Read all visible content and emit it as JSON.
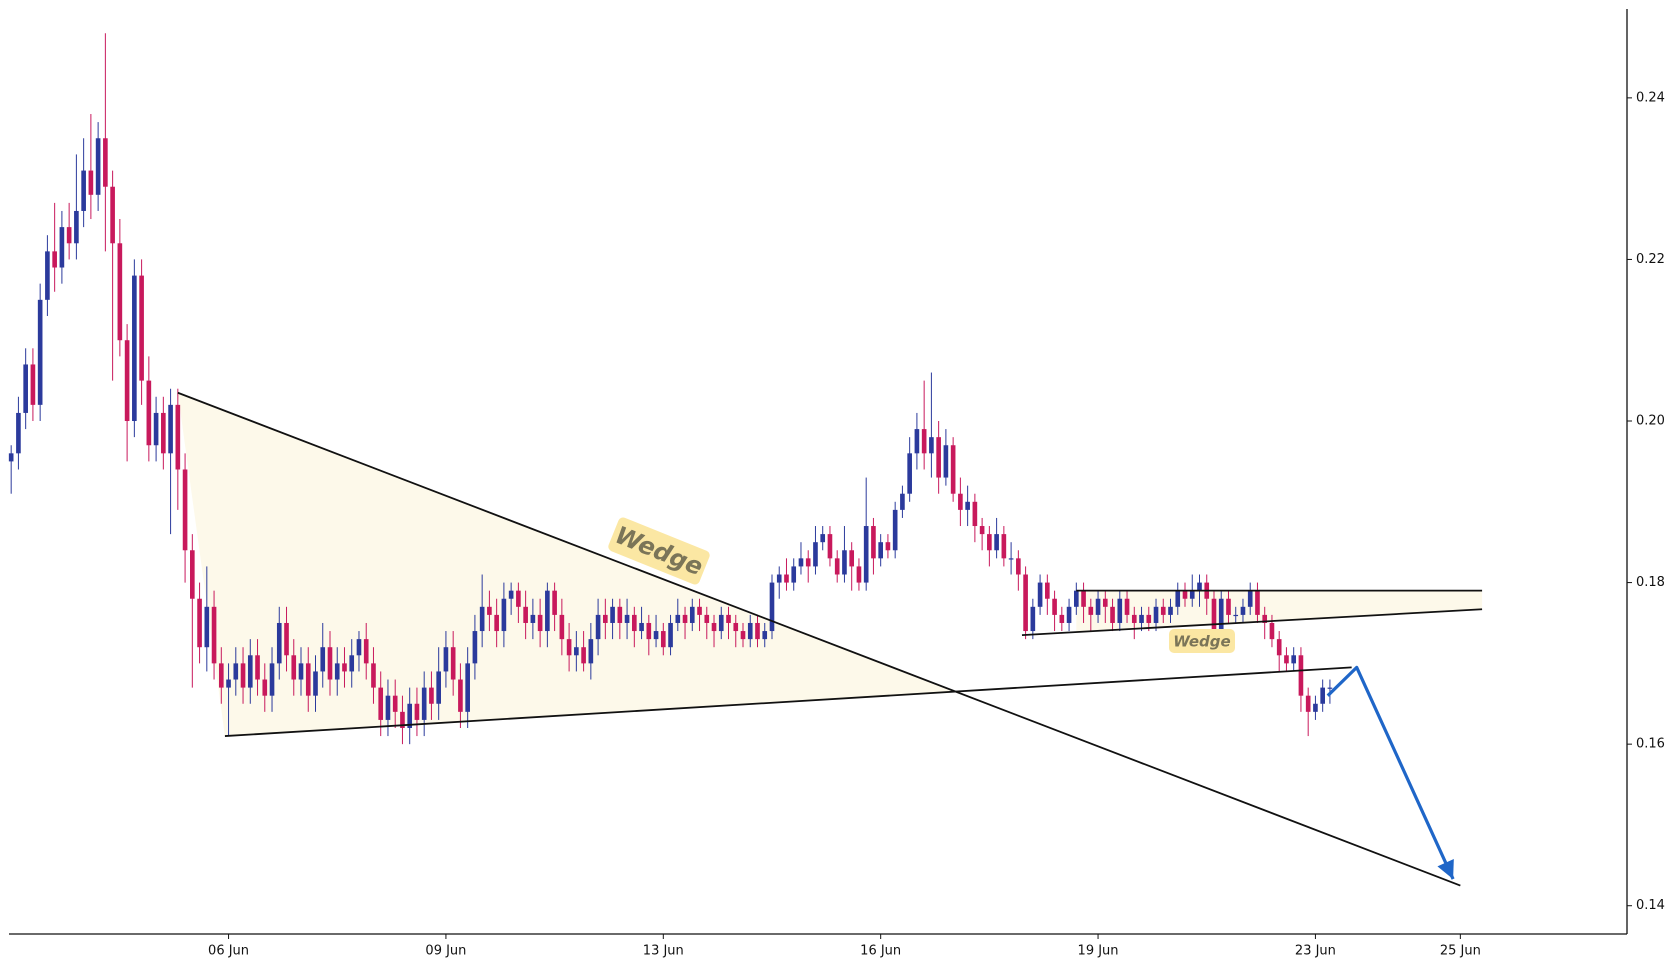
{
  "chart_data": {
    "type": "candlestick",
    "up_color": "#2b3a9c",
    "down_color": "#c8195c",
    "candles": [
      [
        0.195,
        0.197,
        0.191,
        0.196
      ],
      [
        0.196,
        0.203,
        0.194,
        0.201
      ],
      [
        0.201,
        0.209,
        0.199,
        0.207
      ],
      [
        0.207,
        0.209,
        0.2,
        0.202
      ],
      [
        0.202,
        0.217,
        0.2,
        0.215
      ],
      [
        0.215,
        0.223,
        0.213,
        0.221
      ],
      [
        0.221,
        0.227,
        0.216,
        0.219
      ],
      [
        0.219,
        0.226,
        0.217,
        0.224
      ],
      [
        0.224,
        0.227,
        0.22,
        0.222
      ],
      [
        0.222,
        0.233,
        0.22,
        0.226
      ],
      [
        0.226,
        0.235,
        0.224,
        0.231
      ],
      [
        0.231,
        0.238,
        0.225,
        0.228
      ],
      [
        0.228,
        0.237,
        0.226,
        0.235
      ],
      [
        0.235,
        0.248,
        0.221,
        0.229
      ],
      [
        0.229,
        0.231,
        0.205,
        0.222
      ],
      [
        0.222,
        0.225,
        0.208,
        0.21
      ],
      [
        0.21,
        0.212,
        0.195,
        0.2
      ],
      [
        0.2,
        0.22,
        0.198,
        0.218
      ],
      [
        0.218,
        0.22,
        0.202,
        0.205
      ],
      [
        0.205,
        0.208,
        0.195,
        0.197
      ],
      [
        0.197,
        0.203,
        0.195,
        0.201
      ],
      [
        0.201,
        0.203,
        0.194,
        0.196
      ],
      [
        0.196,
        0.204,
        0.186,
        0.202
      ],
      [
        0.202,
        0.204,
        0.189,
        0.194
      ],
      [
        0.194,
        0.196,
        0.18,
        0.184
      ],
      [
        0.184,
        0.186,
        0.167,
        0.178
      ],
      [
        0.178,
        0.18,
        0.17,
        0.172
      ],
      [
        0.172,
        0.182,
        0.169,
        0.177
      ],
      [
        0.177,
        0.179,
        0.168,
        0.17
      ],
      [
        0.17,
        0.172,
        0.165,
        0.167
      ],
      [
        0.167,
        0.17,
        0.161,
        0.168
      ],
      [
        0.168,
        0.172,
        0.166,
        0.17
      ],
      [
        0.17,
        0.172,
        0.165,
        0.167
      ],
      [
        0.167,
        0.173,
        0.165,
        0.171
      ],
      [
        0.171,
        0.173,
        0.166,
        0.168
      ],
      [
        0.168,
        0.17,
        0.164,
        0.166
      ],
      [
        0.166,
        0.172,
        0.164,
        0.17
      ],
      [
        0.17,
        0.177,
        0.168,
        0.175
      ],
      [
        0.175,
        0.177,
        0.169,
        0.171
      ],
      [
        0.171,
        0.173,
        0.166,
        0.168
      ],
      [
        0.168,
        0.172,
        0.166,
        0.17
      ],
      [
        0.17,
        0.172,
        0.164,
        0.166
      ],
      [
        0.166,
        0.171,
        0.164,
        0.169
      ],
      [
        0.169,
        0.175,
        0.167,
        0.172
      ],
      [
        0.172,
        0.174,
        0.166,
        0.168
      ],
      [
        0.168,
        0.172,
        0.166,
        0.17
      ],
      [
        0.17,
        0.172,
        0.167,
        0.169
      ],
      [
        0.169,
        0.173,
        0.167,
        0.171
      ],
      [
        0.171,
        0.174,
        0.169,
        0.173
      ],
      [
        0.173,
        0.175,
        0.168,
        0.17
      ],
      [
        0.17,
        0.172,
        0.165,
        0.167
      ],
      [
        0.167,
        0.169,
        0.161,
        0.163
      ],
      [
        0.163,
        0.168,
        0.161,
        0.166
      ],
      [
        0.166,
        0.168,
        0.162,
        0.164
      ],
      [
        0.164,
        0.166,
        0.16,
        0.162
      ],
      [
        0.162,
        0.167,
        0.16,
        0.165
      ],
      [
        0.165,
        0.167,
        0.161,
        0.163
      ],
      [
        0.163,
        0.169,
        0.161,
        0.167
      ],
      [
        0.167,
        0.169,
        0.163,
        0.165
      ],
      [
        0.165,
        0.172,
        0.163,
        0.169
      ],
      [
        0.169,
        0.174,
        0.167,
        0.172
      ],
      [
        0.172,
        0.174,
        0.166,
        0.168
      ],
      [
        0.168,
        0.17,
        0.162,
        0.164
      ],
      [
        0.164,
        0.172,
        0.162,
        0.17
      ],
      [
        0.17,
        0.176,
        0.168,
        0.174
      ],
      [
        0.174,
        0.181,
        0.172,
        0.177
      ],
      [
        0.177,
        0.179,
        0.174,
        0.176
      ],
      [
        0.176,
        0.178,
        0.172,
        0.174
      ],
      [
        0.174,
        0.18,
        0.172,
        0.178
      ],
      [
        0.178,
        0.18,
        0.176,
        0.179
      ],
      [
        0.179,
        0.18,
        0.175,
        0.177
      ],
      [
        0.177,
        0.179,
        0.173,
        0.175
      ],
      [
        0.175,
        0.178,
        0.173,
        0.176
      ],
      [
        0.176,
        0.178,
        0.172,
        0.174
      ],
      [
        0.174,
        0.18,
        0.172,
        0.179
      ],
      [
        0.179,
        0.18,
        0.174,
        0.176
      ],
      [
        0.176,
        0.178,
        0.171,
        0.173
      ],
      [
        0.173,
        0.175,
        0.169,
        0.171
      ],
      [
        0.171,
        0.174,
        0.169,
        0.172
      ],
      [
        0.172,
        0.174,
        0.169,
        0.17
      ],
      [
        0.17,
        0.175,
        0.168,
        0.173
      ],
      [
        0.173,
        0.178,
        0.171,
        0.176
      ],
      [
        0.176,
        0.178,
        0.173,
        0.175
      ],
      [
        0.175,
        0.178,
        0.173,
        0.177
      ],
      [
        0.177,
        0.178,
        0.173,
        0.175
      ],
      [
        0.175,
        0.178,
        0.173,
        0.176
      ],
      [
        0.176,
        0.177,
        0.172,
        0.174
      ],
      [
        0.174,
        0.177,
        0.173,
        0.175
      ],
      [
        0.175,
        0.176,
        0.171,
        0.173
      ],
      [
        0.173,
        0.176,
        0.172,
        0.174
      ],
      [
        0.174,
        0.175,
        0.171,
        0.172
      ],
      [
        0.172,
        0.176,
        0.171,
        0.175
      ],
      [
        0.175,
        0.178,
        0.174,
        0.176
      ],
      [
        0.176,
        0.177,
        0.173,
        0.175
      ],
      [
        0.175,
        0.178,
        0.174,
        0.177
      ],
      [
        0.177,
        0.178,
        0.174,
        0.176
      ],
      [
        0.176,
        0.177,
        0.173,
        0.175
      ],
      [
        0.175,
        0.176,
        0.172,
        0.174
      ],
      [
        0.174,
        0.177,
        0.173,
        0.176
      ],
      [
        0.176,
        0.177,
        0.173,
        0.175
      ],
      [
        0.175,
        0.176,
        0.172,
        0.174
      ],
      [
        0.174,
        0.175,
        0.172,
        0.173
      ],
      [
        0.173,
        0.176,
        0.172,
        0.175
      ],
      [
        0.175,
        0.176,
        0.172,
        0.173
      ],
      [
        0.173,
        0.175,
        0.172,
        0.174
      ],
      [
        0.174,
        0.181,
        0.173,
        0.18
      ],
      [
        0.18,
        0.182,
        0.178,
        0.181
      ],
      [
        0.181,
        0.183,
        0.179,
        0.18
      ],
      [
        0.18,
        0.183,
        0.179,
        0.182
      ],
      [
        0.182,
        0.185,
        0.181,
        0.183
      ],
      [
        0.183,
        0.184,
        0.18,
        0.182
      ],
      [
        0.182,
        0.187,
        0.181,
        0.185
      ],
      [
        0.185,
        0.187,
        0.184,
        0.186
      ],
      [
        0.186,
        0.187,
        0.182,
        0.183
      ],
      [
        0.183,
        0.184,
        0.18,
        0.181
      ],
      [
        0.181,
        0.187,
        0.18,
        0.184
      ],
      [
        0.184,
        0.185,
        0.179,
        0.182
      ],
      [
        0.182,
        0.183,
        0.179,
        0.18
      ],
      [
        0.18,
        0.193,
        0.179,
        0.187
      ],
      [
        0.187,
        0.188,
        0.181,
        0.183
      ],
      [
        0.183,
        0.186,
        0.182,
        0.185
      ],
      [
        0.185,
        0.186,
        0.183,
        0.184
      ],
      [
        0.184,
        0.19,
        0.183,
        0.189
      ],
      [
        0.189,
        0.192,
        0.188,
        0.191
      ],
      [
        0.191,
        0.198,
        0.19,
        0.196
      ],
      [
        0.196,
        0.201,
        0.194,
        0.199
      ],
      [
        0.199,
        0.205,
        0.194,
        0.196
      ],
      [
        0.196,
        0.206,
        0.193,
        0.198
      ],
      [
        0.198,
        0.2,
        0.191,
        0.193
      ],
      [
        0.193,
        0.199,
        0.192,
        0.197
      ],
      [
        0.197,
        0.198,
        0.19,
        0.191
      ],
      [
        0.191,
        0.193,
        0.187,
        0.189
      ],
      [
        0.189,
        0.192,
        0.187,
        0.19
      ],
      [
        0.19,
        0.191,
        0.185,
        0.187
      ],
      [
        0.187,
        0.188,
        0.184,
        0.186
      ],
      [
        0.186,
        0.187,
        0.182,
        0.184
      ],
      [
        0.184,
        0.188,
        0.183,
        0.186
      ],
      [
        0.186,
        0.187,
        0.182,
        0.183
      ],
      [
        0.183,
        0.185,
        0.181,
        0.183
      ],
      [
        0.183,
        0.184,
        0.179,
        0.181
      ],
      [
        0.181,
        0.182,
        0.173,
        0.174
      ],
      [
        0.174,
        0.178,
        0.173,
        0.177
      ],
      [
        0.177,
        0.181,
        0.176,
        0.18
      ],
      [
        0.18,
        0.181,
        0.176,
        0.178
      ],
      [
        0.178,
        0.179,
        0.174,
        0.176
      ],
      [
        0.176,
        0.177,
        0.174,
        0.175
      ],
      [
        0.175,
        0.178,
        0.174,
        0.177
      ],
      [
        0.177,
        0.18,
        0.176,
        0.179
      ],
      [
        0.179,
        0.18,
        0.175,
        0.177
      ],
      [
        0.177,
        0.178,
        0.174,
        0.176
      ],
      [
        0.176,
        0.179,
        0.175,
        0.178
      ],
      [
        0.178,
        0.179,
        0.175,
        0.177
      ],
      [
        0.177,
        0.178,
        0.174,
        0.175
      ],
      [
        0.175,
        0.179,
        0.174,
        0.178
      ],
      [
        0.178,
        0.179,
        0.175,
        0.176
      ],
      [
        0.176,
        0.177,
        0.173,
        0.175
      ],
      [
        0.175,
        0.177,
        0.174,
        0.176
      ],
      [
        0.176,
        0.177,
        0.174,
        0.175
      ],
      [
        0.175,
        0.178,
        0.174,
        0.177
      ],
      [
        0.177,
        0.178,
        0.175,
        0.176
      ],
      [
        0.176,
        0.178,
        0.175,
        0.177
      ],
      [
        0.177,
        0.18,
        0.176,
        0.179
      ],
      [
        0.179,
        0.18,
        0.177,
        0.178
      ],
      [
        0.178,
        0.181,
        0.177,
        0.179
      ],
      [
        0.179,
        0.181,
        0.177,
        0.18
      ],
      [
        0.18,
        0.181,
        0.176,
        0.178
      ],
      [
        0.178,
        0.179,
        0.173,
        0.174
      ],
      [
        0.174,
        0.179,
        0.173,
        0.178
      ],
      [
        0.178,
        0.179,
        0.175,
        0.176
      ],
      [
        0.176,
        0.177,
        0.175,
        0.176
      ],
      [
        0.176,
        0.178,
        0.175,
        0.177
      ],
      [
        0.177,
        0.18,
        0.176,
        0.179
      ],
      [
        0.179,
        0.18,
        0.175,
        0.176
      ],
      [
        0.176,
        0.177,
        0.173,
        0.175
      ],
      [
        0.175,
        0.176,
        0.172,
        0.173
      ],
      [
        0.173,
        0.174,
        0.169,
        0.171
      ],
      [
        0.171,
        0.172,
        0.169,
        0.17
      ],
      [
        0.17,
        0.172,
        0.169,
        0.171
      ],
      [
        0.171,
        0.172,
        0.164,
        0.166
      ],
      [
        0.166,
        0.167,
        0.161,
        0.164
      ],
      [
        0.164,
        0.166,
        0.163,
        0.165
      ],
      [
        0.165,
        0.168,
        0.164,
        0.167
      ],
      [
        0.167,
        0.168,
        0.165,
        0.167
      ]
    ],
    "xlim": [
      -0.3,
      223
    ],
    "ylim": [
      0.1365,
      0.251
    ],
    "xticks": [
      {
        "value": 30,
        "label": "06 Jun"
      },
      {
        "value": 60,
        "label": "09 Jun"
      },
      {
        "value": 90,
        "label": "13 Jun"
      },
      {
        "value": 120,
        "label": "16 Jun"
      },
      {
        "value": 150,
        "label": "19 Jun"
      },
      {
        "value": 180,
        "label": "23 Jun"
      },
      {
        "value": 200,
        "label": "25 Jun"
      }
    ],
    "yticks": [
      0.14,
      0.16,
      0.18,
      {
        "value": 0.2,
        "label": "0.20"
      },
      0.22,
      0.24
    ],
    "fills": [
      {
        "color": "#fdf9ea",
        "points": [
          [
            23,
            0.2035
          ],
          [
            29.5,
            0.161
          ],
          [
            130,
            0.1665
          ]
        ]
      },
      {
        "color": "#fdf9ea",
        "points": [
          [
            147,
            0.179
          ],
          [
            203,
            0.179
          ],
          [
            203,
            0.1767
          ],
          [
            139.5,
            0.1735
          ],
          [
            147,
            0.1739
          ]
        ]
      }
    ],
    "trendlines": [
      {
        "color": "#111111",
        "points": [
          [
            23,
            0.2035
          ],
          [
            200,
            0.1425
          ]
        ]
      },
      {
        "color": "#111111",
        "points": [
          [
            29.5,
            0.161
          ],
          [
            185,
            0.1695
          ]
        ]
      },
      {
        "color": "#111111",
        "points": [
          [
            147,
            0.179
          ],
          [
            203,
            0.179
          ]
        ]
      },
      {
        "color": "#111111",
        "points": [
          [
            139.5,
            0.1735
          ],
          [
            203,
            0.1767
          ]
        ]
      }
    ],
    "arrow": {
      "color": "#1f66c8",
      "points": [
        [
          181.7,
          0.166
        ],
        [
          185.7,
          0.1695
        ],
        [
          199,
          0.1433
        ]
      ]
    },
    "labels": [
      {
        "text": "Wedge"
      },
      {
        "text": "Wedge"
      }
    ]
  }
}
